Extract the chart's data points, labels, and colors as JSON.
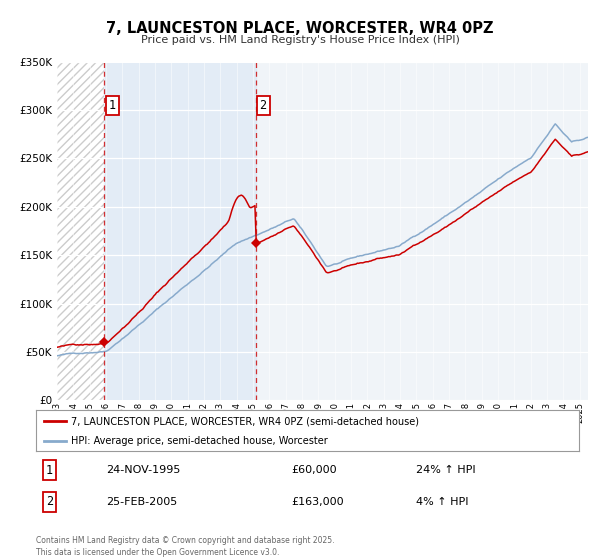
{
  "title": "7, LAUNCESTON PLACE, WORCESTER, WR4 0PZ",
  "subtitle": "Price paid vs. HM Land Registry's House Price Index (HPI)",
  "legend_entry1": "7, LAUNCESTON PLACE, WORCESTER, WR4 0PZ (semi-detached house)",
  "legend_entry2": "HPI: Average price, semi-detached house, Worcester",
  "transaction1_date": "24-NOV-1995",
  "transaction1_price": "£60,000",
  "transaction1_hpi": "24% ↑ HPI",
  "transaction1_year": 1995.9,
  "transaction1_value": 60000,
  "transaction2_date": "25-FEB-2005",
  "transaction2_price": "£163,000",
  "transaction2_hpi": "4% ↑ HPI",
  "transaction2_year": 2005.15,
  "transaction2_value": 163000,
  "price_color": "#cc0000",
  "hpi_color": "#88aacc",
  "vline_color": "#cc0000",
  "background_color": "#f0f4f8",
  "footnote": "Contains HM Land Registry data © Crown copyright and database right 2025.\nThis data is licensed under the Open Government Licence v3.0.",
  "ylim": [
    0,
    350000
  ],
  "yticks": [
    0,
    50000,
    100000,
    150000,
    200000,
    250000,
    300000,
    350000
  ],
  "xstart": 1993.0,
  "xend": 2025.5
}
